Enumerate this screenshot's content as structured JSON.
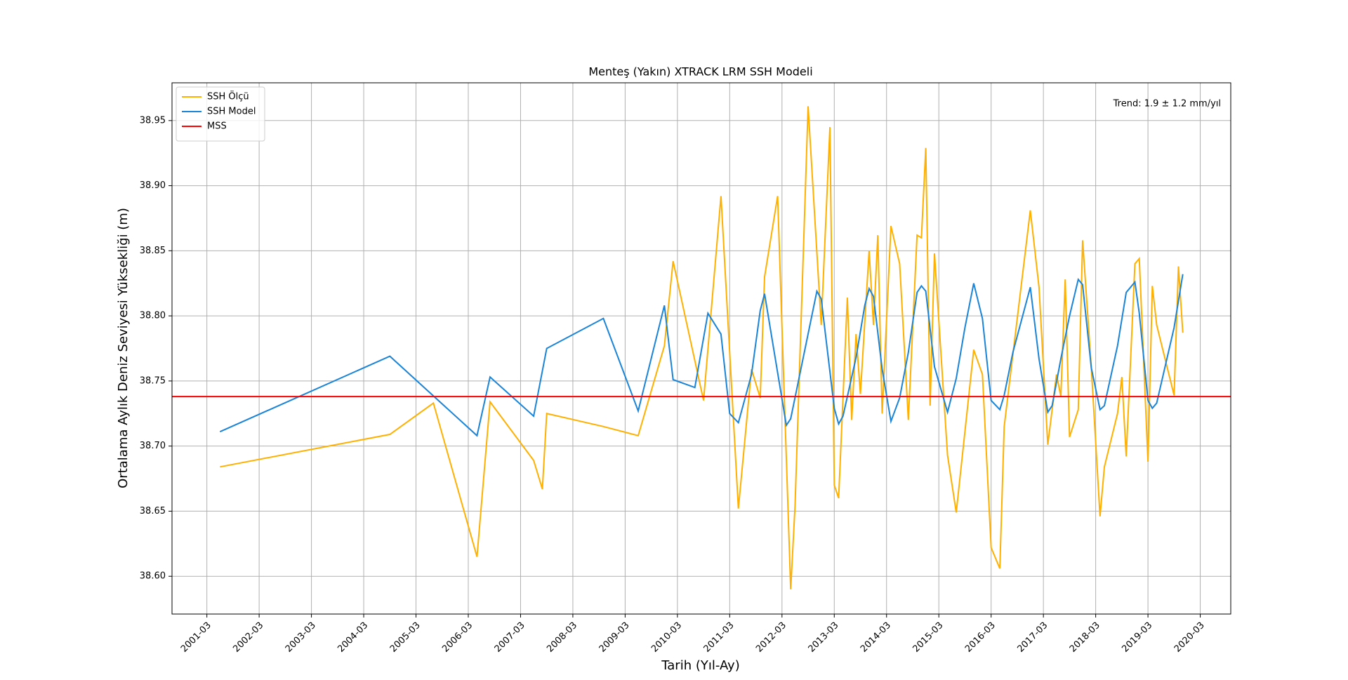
{
  "chart_data": {
    "type": "line",
    "title": "Menteş (Yakın) XTRACK LRM SSH Modeli",
    "xlabel": "Tarih (Yıl-Ay)",
    "ylabel": "Ortalama Aylık Deniz Seviyesi Yüksekliği (m)",
    "annotation": "Trend: 1.9 ± 1.2 mm/yıl",
    "grid": true,
    "legend_loc": "upper-left",
    "xlim": [
      "2000-07",
      "2020-10"
    ],
    "xticks": [
      "2001-03",
      "2002-03",
      "2003-03",
      "2004-03",
      "2005-03",
      "2006-03",
      "2007-03",
      "2008-03",
      "2009-03",
      "2010-03",
      "2011-03",
      "2012-03",
      "2013-03",
      "2014-03",
      "2015-03",
      "2016-03",
      "2017-03",
      "2018-03",
      "2019-03",
      "2020-03"
    ],
    "ylim": [
      38.571,
      38.979
    ],
    "yticks": [
      {
        "value": 38.6,
        "label": "38.60"
      },
      38.65,
      {
        "value": 38.7,
        "label": "38.70"
      },
      38.75,
      {
        "value": 38.8,
        "label": "38.80"
      },
      38.85,
      {
        "value": 38.9,
        "label": "38.90"
      },
      38.95
    ],
    "series": [
      {
        "name": "SSH Ölçü",
        "color": "#ffb000",
        "x": [
          "2001-06",
          "2004-09",
          "2005-07",
          "2006-05",
          "2006-08",
          "2007-06",
          "2007-08",
          "2007-09",
          "2008-10",
          "2009-06",
          "2009-12",
          "2010-02",
          "2010-09",
          "2011-01",
          "2011-05",
          "2011-08",
          "2011-10",
          "2011-11",
          "2012-02",
          "2012-05",
          "2012-06",
          "2012-09",
          "2012-12",
          "2013-02",
          "2013-03",
          "2013-04",
          "2013-06",
          "2013-07",
          "2013-08",
          "2013-09",
          "2013-11",
          "2013-12",
          "2014-01",
          "2014-02",
          "2014-04",
          "2014-06",
          "2014-08",
          "2014-10",
          "2014-11",
          "2014-12",
          "2015-01",
          "2015-02",
          "2015-05",
          "2015-07",
          "2015-11",
          "2016-01",
          "2016-03",
          "2016-05",
          "2016-06",
          "2016-12",
          "2017-02",
          "2017-04",
          "2017-06",
          "2017-07",
          "2017-08",
          "2017-09",
          "2017-11",
          "2017-12",
          "2018-02",
          "2018-04",
          "2018-05",
          "2018-08",
          "2018-09",
          "2018-10",
          "2018-12",
          "2019-01",
          "2019-03",
          "2019-04",
          "2019-05",
          "2019-09",
          "2019-10",
          "2019-11"
        ],
        "values": [
          38.684,
          38.709,
          38.733,
          38.615,
          38.734,
          38.689,
          38.667,
          38.725,
          38.715,
          38.708,
          38.777,
          38.842,
          38.735,
          38.892,
          38.652,
          38.759,
          38.737,
          38.83,
          38.892,
          38.59,
          38.654,
          38.961,
          38.793,
          38.945,
          38.67,
          38.66,
          38.814,
          38.72,
          38.786,
          38.74,
          38.85,
          38.793,
          38.862,
          38.725,
          38.869,
          38.84,
          38.72,
          38.862,
          38.86,
          38.929,
          38.731,
          38.848,
          38.693,
          38.649,
          38.774,
          38.755,
          38.622,
          38.606,
          38.715,
          38.881,
          38.822,
          38.701,
          38.755,
          38.738,
          38.828,
          38.707,
          38.728,
          38.858,
          38.76,
          38.646,
          38.684,
          38.725,
          38.753,
          38.692,
          38.84,
          38.844,
          38.688,
          38.823,
          38.793,
          38.739,
          38.838,
          38.787
        ]
      },
      {
        "name": "SSH Model",
        "color": "#1a84d8",
        "x": [
          "2001-06",
          "2004-09",
          "2006-05",
          "2006-08",
          "2007-06",
          "2007-09",
          "2008-10",
          "2009-06",
          "2009-12",
          "2010-02",
          "2010-07",
          "2010-10",
          "2011-01",
          "2011-03",
          "2011-05",
          "2011-08",
          "2011-10",
          "2011-11",
          "2012-04",
          "2012-05",
          "2012-11",
          "2012-12",
          "2013-03",
          "2013-04",
          "2013-05",
          "2013-08",
          "2013-10",
          "2013-11",
          "2013-12",
          "2014-02",
          "2014-04",
          "2014-06",
          "2014-08",
          "2014-10",
          "2014-11",
          "2014-12",
          "2015-02",
          "2015-05",
          "2015-07",
          "2015-09",
          "2015-11",
          "2016-01",
          "2016-03",
          "2016-05",
          "2016-06",
          "2016-08",
          "2016-12",
          "2017-02",
          "2017-04",
          "2017-05",
          "2017-07",
          "2017-09",
          "2017-11",
          "2017-12",
          "2018-02",
          "2018-04",
          "2018-05",
          "2018-08",
          "2018-10",
          "2018-12",
          "2019-01",
          "2019-03",
          "2019-04",
          "2019-05",
          "2019-09",
          "2019-11"
        ],
        "values": [
          38.711,
          38.769,
          38.708,
          38.753,
          38.723,
          38.775,
          38.798,
          38.727,
          38.808,
          38.751,
          38.745,
          38.802,
          38.786,
          38.725,
          38.718,
          38.755,
          38.804,
          38.817,
          38.716,
          38.721,
          38.819,
          38.813,
          38.729,
          38.717,
          38.723,
          38.768,
          38.808,
          38.821,
          38.815,
          38.759,
          38.719,
          38.737,
          38.772,
          38.818,
          38.823,
          38.819,
          38.761,
          38.726,
          38.752,
          38.791,
          38.825,
          38.798,
          38.735,
          38.728,
          38.739,
          38.772,
          38.822,
          38.767,
          38.726,
          38.731,
          38.767,
          38.8,
          38.828,
          38.824,
          38.76,
          38.728,
          38.731,
          38.777,
          38.818,
          38.826,
          38.802,
          38.735,
          38.729,
          38.733,
          38.791,
          38.832
        ]
      },
      {
        "name": "MSS",
        "color": "#ff0000",
        "value": 38.738
      }
    ]
  }
}
